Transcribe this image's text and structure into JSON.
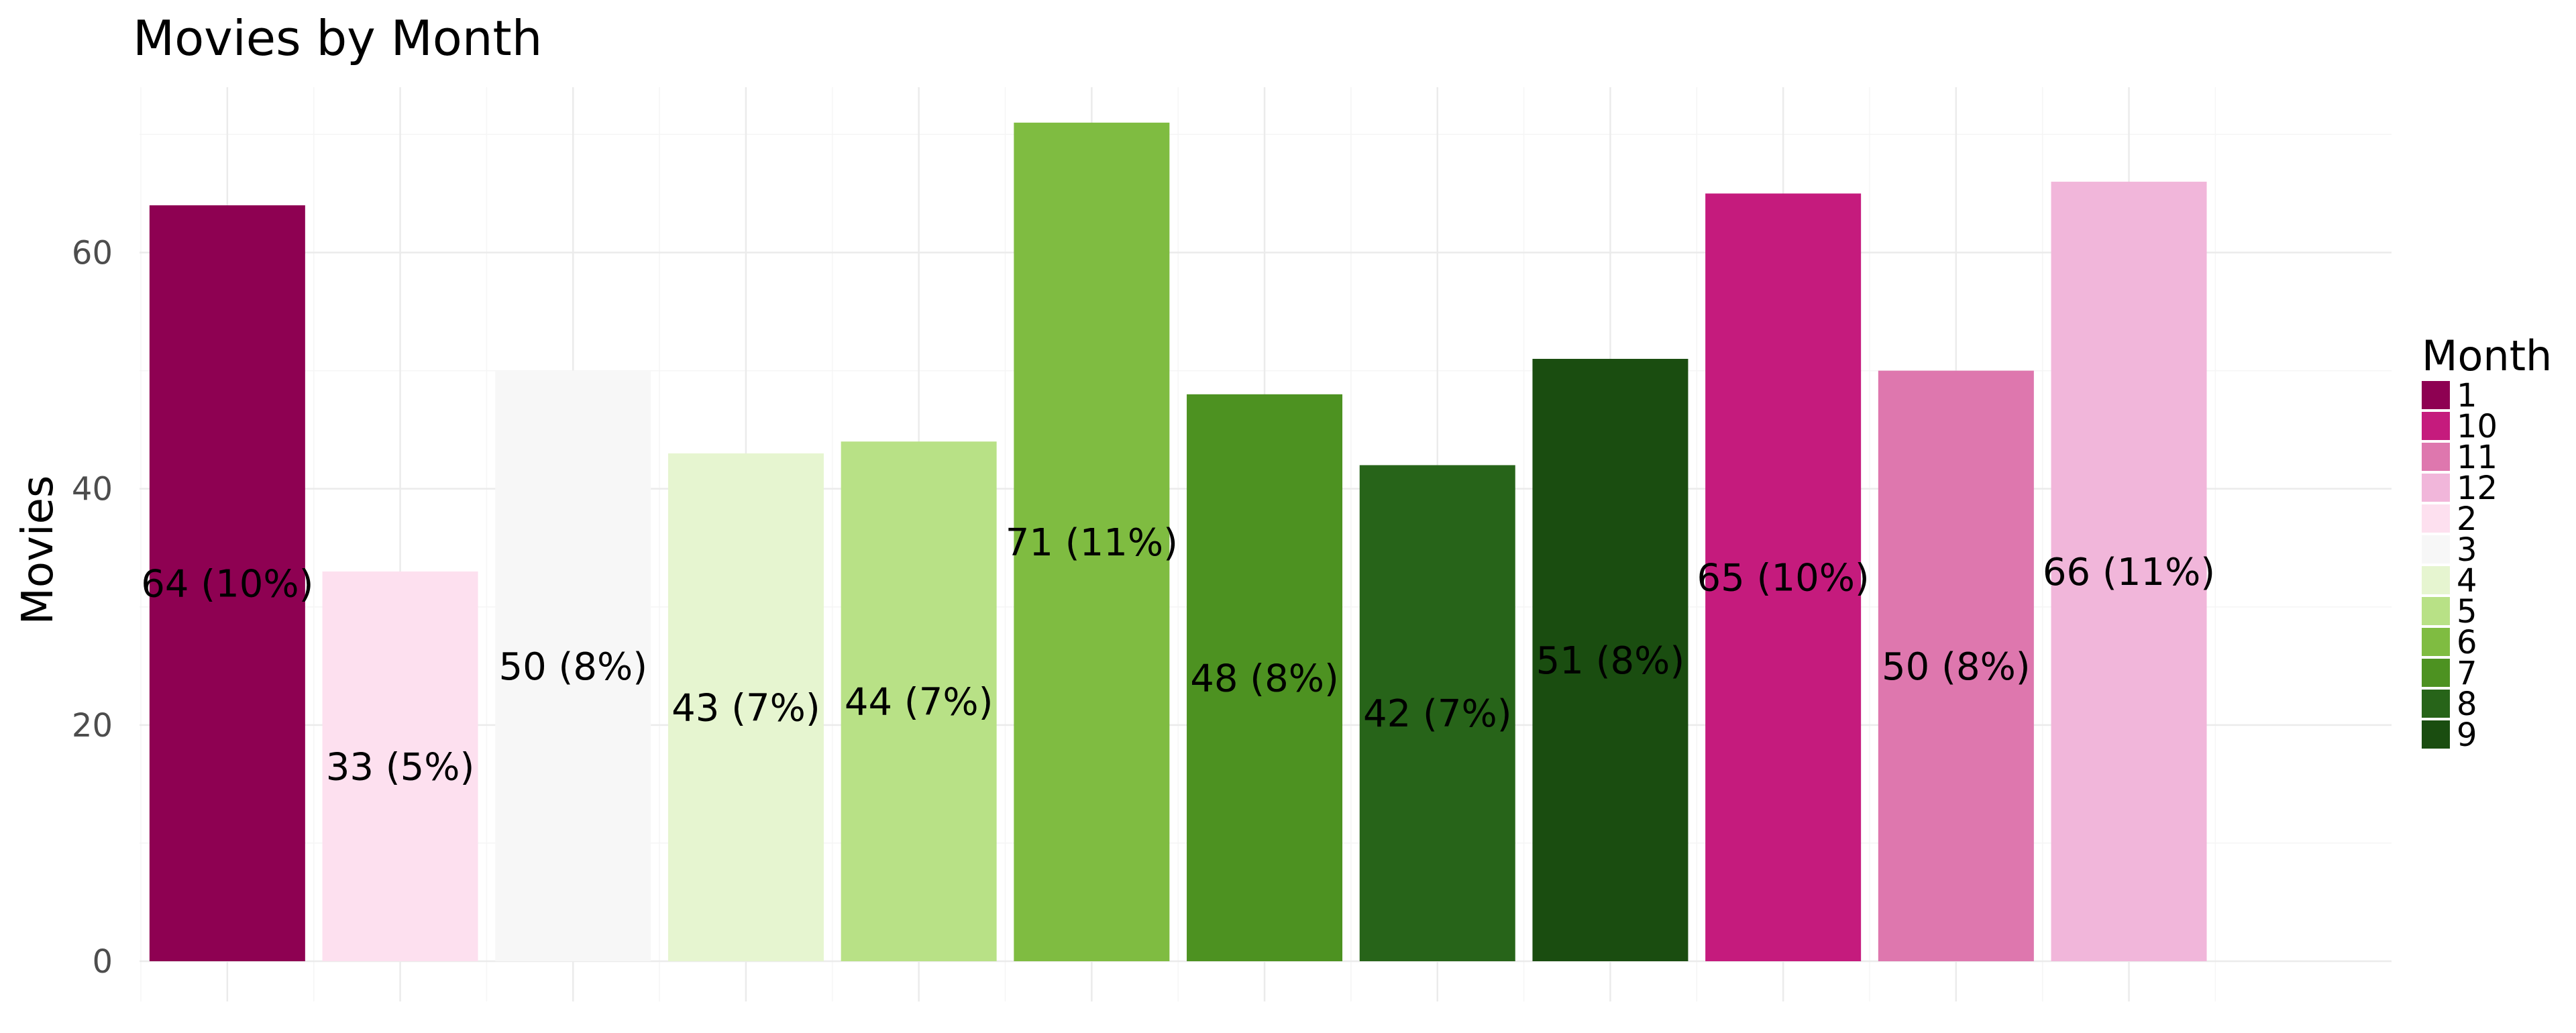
{
  "chart_data": {
    "type": "bar",
    "title": "Movies by Month",
    "xlabel": "",
    "ylabel": "Movies",
    "ylim": [
      0,
      74
    ],
    "yticks": [
      0,
      20,
      40,
      60
    ],
    "grid": true,
    "legend": {
      "title": "Month",
      "placement": "right",
      "entries": [
        "1",
        "10",
        "11",
        "12",
        "2",
        "3",
        "4",
        "5",
        "6",
        "7",
        "8",
        "9"
      ]
    },
    "categories": [
      "1",
      "2",
      "3",
      "4",
      "5",
      "6",
      "7",
      "8",
      "9",
      "10",
      "11",
      "12"
    ],
    "values": [
      64,
      33,
      50,
      43,
      44,
      71,
      48,
      42,
      51,
      65,
      50,
      66
    ],
    "data_labels": [
      "64 (10%)",
      "33 (5%)",
      "50 (8%)",
      "43 (7%)",
      "44 (7%)",
      "71 (11%)",
      "48 (8%)",
      "42 (7%)",
      "51 (8%)",
      "65 (10%)",
      "50 (8%)",
      "66 (11%)"
    ],
    "colors": {
      "1": "#8e0152",
      "10": "#c51b7d",
      "11": "#de77ae",
      "12": "#f1b6da",
      "2": "#fde0ef",
      "3": "#f7f7f7",
      "4": "#e6f5d0",
      "5": "#b8e186",
      "6": "#7fbc41",
      "7": "#4d9221",
      "8": "#276419",
      "9": "#1a4d10"
    }
  }
}
